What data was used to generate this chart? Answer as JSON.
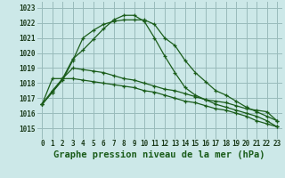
{
  "title": "Graphe pression niveau de la mer (hPa)",
  "bg_color": "#cce8e8",
  "grid_color": "#99bbbb",
  "line_color": "#1a5c1a",
  "xlim": [
    -0.5,
    23.5
  ],
  "ylim": [
    1014.3,
    1023.4
  ],
  "yticks": [
    1015,
    1016,
    1017,
    1018,
    1019,
    1020,
    1021,
    1022,
    1023
  ],
  "xticks": [
    0,
    1,
    2,
    3,
    4,
    5,
    6,
    7,
    8,
    9,
    10,
    11,
    12,
    13,
    14,
    15,
    16,
    17,
    18,
    19,
    20,
    21,
    22,
    23
  ],
  "series": [
    {
      "x": [
        0,
        1,
        2,
        3,
        4,
        5,
        6,
        7,
        8,
        9,
        10,
        11,
        12,
        13,
        14,
        15,
        16,
        17,
        18,
        19,
        20,
        21,
        22,
        23
      ],
      "y": [
        1016.6,
        1017.5,
        1018.3,
        1019.6,
        1020.2,
        1020.9,
        1021.6,
        1022.2,
        1022.5,
        1022.5,
        1022.1,
        1021.0,
        1019.8,
        1018.7,
        1017.7,
        1017.2,
        1016.9,
        1016.6,
        1016.4,
        1016.2,
        1016.0,
        1015.8,
        1015.5,
        1015.1
      ]
    },
    {
      "x": [
        0,
        1,
        2,
        3,
        4,
        5,
        6,
        7,
        8,
        9,
        10,
        11,
        12,
        13,
        14,
        15,
        16,
        17,
        18,
        19,
        20,
        21,
        22,
        23
      ],
      "y": [
        1016.6,
        1017.4,
        1018.2,
        1019.5,
        1021.0,
        1021.5,
        1021.9,
        1022.1,
        1022.2,
        1022.2,
        1022.2,
        1021.9,
        1021.0,
        1020.5,
        1019.5,
        1018.7,
        1018.1,
        1017.5,
        1017.2,
        1016.8,
        1016.4,
        1016.1,
        1015.8,
        1015.5
      ]
    },
    {
      "x": [
        0,
        1,
        2,
        3,
        4,
        5,
        6,
        7,
        8,
        9,
        10,
        11,
        12,
        13,
        14,
        15,
        16,
        17,
        18,
        19,
        20,
        21,
        22,
        23
      ],
      "y": [
        1016.6,
        1018.3,
        1018.3,
        1019.0,
        1018.9,
        1018.8,
        1018.7,
        1018.5,
        1018.3,
        1018.2,
        1018.0,
        1017.8,
        1017.6,
        1017.5,
        1017.3,
        1017.1,
        1016.9,
        1016.8,
        1016.7,
        1016.5,
        1016.3,
        1016.2,
        1016.1,
        1015.5
      ]
    },
    {
      "x": [
        0,
        1,
        2,
        3,
        4,
        5,
        6,
        7,
        8,
        9,
        10,
        11,
        12,
        13,
        14,
        15,
        16,
        17,
        18,
        19,
        20,
        21,
        22,
        23
      ],
      "y": [
        1016.6,
        1017.4,
        1018.3,
        1018.3,
        1018.2,
        1018.1,
        1018.0,
        1017.9,
        1017.8,
        1017.7,
        1017.5,
        1017.4,
        1017.2,
        1017.0,
        1016.8,
        1016.7,
        1016.5,
        1016.3,
        1016.2,
        1016.0,
        1015.8,
        1015.5,
        1015.3,
        1015.1
      ]
    }
  ],
  "tick_fontsize": 5.5,
  "label_fontsize": 7.5
}
